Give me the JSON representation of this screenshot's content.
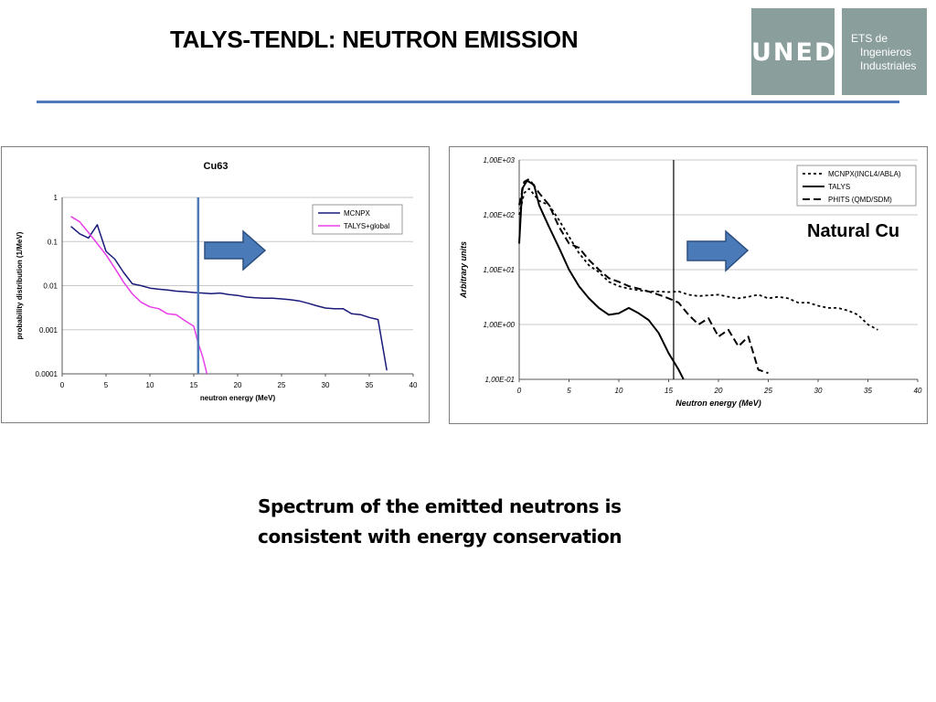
{
  "slide": {
    "title": "TALYS-TENDL: NEUTRON EMISSION",
    "caption_line1": "Spectrum of the emitted neutrons is",
    "caption_line2": "consistent with energy conservation",
    "natural_label": "Natural Cu"
  },
  "logos": {
    "uned": "UNED",
    "ets_lines": [
      "ETS de",
      "Ingenieros",
      "Industriales"
    ],
    "color": "#8a9e9c"
  },
  "colors": {
    "title_rule": "#4a7ab8",
    "arrow_fill": "#4a7ab8",
    "arrow_stroke": "#2c4f80"
  },
  "chart_data": [
    {
      "type": "line",
      "title": "Cu63",
      "xlabel": "neutron energy (MeV)",
      "ylabel": "probability distribution (1/MeV)",
      "xlim": [
        0,
        40
      ],
      "ylim": [
        0.0001,
        1
      ],
      "yscale": "log",
      "xticks": [
        0,
        5,
        10,
        15,
        20,
        25,
        30,
        35,
        40
      ],
      "yticks": [
        0.0001,
        0.001,
        0.01,
        0.1,
        1
      ],
      "ytick_labels": [
        "0.0001",
        "0.001",
        "0.01",
        "0.1",
        "1"
      ],
      "grid": "horizontal",
      "legend": "top-right",
      "vline_x": 15.5,
      "series": [
        {
          "name": "MCNPX",
          "color": "#1a1a7a",
          "x": [
            1,
            2,
            3,
            4,
            5,
            6,
            7,
            8,
            9,
            10,
            11,
            12,
            13,
            14,
            15,
            16,
            17,
            18,
            19,
            20,
            21,
            22,
            23,
            24,
            25,
            26,
            27,
            28,
            29,
            30,
            31,
            32,
            33,
            34,
            35,
            36,
            37
          ],
          "y": [
            0.22,
            0.15,
            0.12,
            0.24,
            0.06,
            0.04,
            0.02,
            0.011,
            0.01,
            0.0088,
            0.0083,
            0.008,
            0.0075,
            0.0073,
            0.007,
            0.0068,
            0.0066,
            0.0068,
            0.0063,
            0.006,
            0.0055,
            0.0053,
            0.0052,
            0.0052,
            0.005,
            0.0048,
            0.0045,
            0.004,
            0.0035,
            0.0031,
            0.003,
            0.003,
            0.0023,
            0.0022,
            0.0019,
            0.0017,
            0.00012
          ]
        },
        {
          "name": "TALYS+global",
          "color": "#e83ee8",
          "x": [
            1,
            2,
            3,
            4,
            5,
            6,
            7,
            8,
            9,
            10,
            11,
            12,
            13,
            14,
            15,
            15.5,
            16,
            16.5
          ],
          "y": [
            0.37,
            0.28,
            0.16,
            0.09,
            0.05,
            0.025,
            0.012,
            0.0065,
            0.0042,
            0.0033,
            0.003,
            0.0023,
            0.0022,
            0.0016,
            0.0012,
            0.0005,
            0.00025,
            0.0001
          ]
        }
      ]
    },
    {
      "type": "line",
      "title": "",
      "xlabel": "Neutron energy (MeV)",
      "ylabel": "Arbitrary units",
      "xlim": [
        0,
        40
      ],
      "ylim": [
        0.1,
        1000
      ],
      "yscale": "log",
      "xticks": [
        0,
        5,
        10,
        15,
        20,
        25,
        30,
        35,
        40
      ],
      "yticks": [
        0.1,
        1,
        10,
        100,
        1000
      ],
      "ytick_labels": [
        "1,00E-01",
        "1,00E+00",
        "1,00E+01",
        "1,00E+02",
        "1,00E+03"
      ],
      "grid": "horizontal",
      "legend": "top-right",
      "vline_x": 15.5,
      "series": [
        {
          "name": "MCNPX(INCL4/ABLA)",
          "style": "dotted",
          "x": [
            0,
            0.5,
            1,
            2,
            3,
            4,
            5,
            6,
            7,
            8,
            9,
            10,
            11,
            12,
            13,
            14,
            15,
            16,
            17,
            18,
            19,
            20,
            21,
            22,
            23,
            24,
            25,
            26,
            27,
            28,
            29,
            30,
            31,
            32,
            33,
            34,
            35,
            36
          ],
          "y": [
            100,
            250,
            300,
            180,
            150,
            80,
            40,
            20,
            12,
            9,
            6,
            5,
            4.5,
            4.2,
            4.0,
            4.0,
            3.9,
            4.0,
            3.5,
            3.3,
            3.4,
            3.5,
            3.2,
            3.0,
            3.2,
            3.5,
            3.0,
            3.2,
            3.0,
            2.5,
            2.5,
            2.2,
            2.0,
            2.0,
            1.8,
            1.5,
            1.0,
            0.8
          ]
        },
        {
          "name": "TALYS",
          "style": "solid",
          "x": [
            0,
            0.3,
            0.8,
            1.5,
            2,
            3,
            4,
            5,
            6,
            7,
            8,
            9,
            10,
            11,
            12,
            13,
            14,
            15,
            16,
            16.5
          ],
          "y": [
            30,
            300,
            420,
            350,
            150,
            60,
            25,
            10,
            5,
            3,
            2,
            1.5,
            1.6,
            2.0,
            1.6,
            1.2,
            0.7,
            0.3,
            0.15,
            0.1
          ]
        },
        {
          "name": "PHITS (QMD/SDM)",
          "style": "dashed",
          "x": [
            0,
            0.5,
            1,
            2,
            3,
            4,
            5,
            6,
            7,
            8,
            9,
            10,
            11,
            12,
            13,
            14,
            15,
            16,
            17,
            18,
            19,
            20,
            21,
            22,
            23,
            24,
            25
          ],
          "y": [
            150,
            400,
            450,
            250,
            150,
            60,
            30,
            25,
            15,
            10,
            7,
            6,
            5,
            4.5,
            4.0,
            3.5,
            3.0,
            2.5,
            1.5,
            1.0,
            1.3,
            0.6,
            0.8,
            0.4,
            0.6,
            0.15,
            0.13
          ]
        }
      ]
    }
  ]
}
